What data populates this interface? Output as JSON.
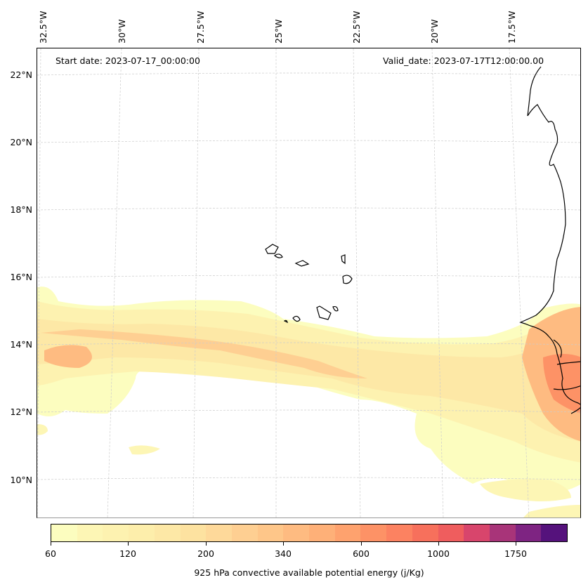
{
  "map": {
    "start_date": "Start date: 2023-07-17_00:00:00",
    "valid_date": "Valid_date: 2023-07-17T12:00:00.00",
    "lon_labels": [
      "32.5°W",
      "30°W",
      "27.5°W",
      "25°W",
      "22.5°W",
      "20°W",
      "17.5°W"
    ],
    "lat_labels": [
      "22°N",
      "20°N",
      "18°N",
      "16°N",
      "14°N",
      "12°N",
      "10°N"
    ],
    "extent": {
      "lon_min": -32.6,
      "lon_max": -15.8,
      "lat_min": 8.9,
      "lat_max": 22.8
    },
    "features": [
      "Cabo Verde islands",
      "West African coastline (Mauritania, Senegal, Gambia, Guinea-Bissau)"
    ],
    "field_description": "CAPE band along ~12-15°N, highest (~340-800 j/Kg) near Senegal/Gambia coast and ~13.5°N west edge"
  },
  "colorbar": {
    "title": "925 hPa convective available potential energy (j/Kg)",
    "tick_labels": [
      "60",
      "120",
      "200",
      "340",
      "600",
      "1000",
      "1750"
    ],
    "colors": [
      "#fcfdbf",
      "#fdf6b5",
      "#fdf2b0",
      "#fdeeab",
      "#fde8a6",
      "#fde2a0",
      "#fed99a",
      "#fecf92",
      "#fec689",
      "#febb81",
      "#feb078",
      "#fea26e",
      "#fd9266",
      "#fc8261",
      "#f7705c",
      "#ef5d5e",
      "#d8456c",
      "#a83479",
      "#7e2482",
      "#55127c"
    ],
    "extend_color": "#160f3b"
  }
}
